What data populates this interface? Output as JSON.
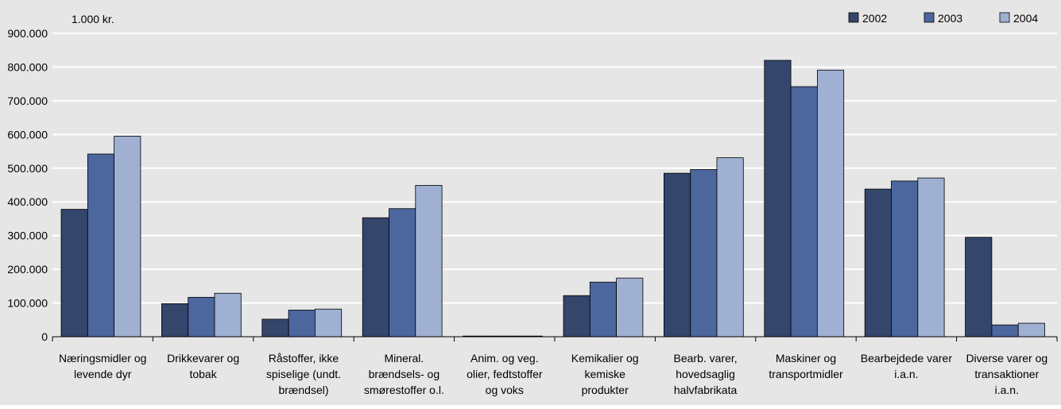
{
  "chart_data": {
    "type": "bar",
    "unit_label": "1.000 kr.",
    "categories": [
      [
        "Næringsmidler og",
        "levende dyr"
      ],
      [
        "Drikkevarer og",
        "tobak"
      ],
      [
        "Råstoffer, ikke",
        "spiselige (undt.",
        "brændsel)"
      ],
      [
        "Mineral.",
        "brændsels- og",
        "smørestoffer o.l."
      ],
      [
        "Anim. og veg.",
        "olier, fedtstoffer",
        "og voks"
      ],
      [
        "Kemikalier og",
        "kemiske",
        "produkter"
      ],
      [
        "Bearb. varer,",
        "hovedsaglig",
        "halvfabrikata"
      ],
      [
        "Maskiner og",
        "transportmidler"
      ],
      [
        "Bearbejdede varer",
        "i.a.n."
      ],
      [
        "Diverse varer og",
        "transaktioner",
        "i.a.n."
      ]
    ],
    "series": [
      {
        "name": "2002",
        "color": "#34466b",
        "values": [
          378000,
          98000,
          52000,
          353000,
          2000,
          122000,
          485000,
          820000,
          438000,
          295000
        ]
      },
      {
        "name": "2003",
        "color": "#4c679e",
        "values": [
          542000,
          117000,
          79000,
          380000,
          2000,
          162000,
          496000,
          742000,
          462000,
          35000
        ]
      },
      {
        "name": "2004",
        "color": "#9fb0d3",
        "values": [
          595000,
          129000,
          82000,
          449000,
          2000,
          174000,
          531000,
          791000,
          471000,
          40000
        ]
      }
    ],
    "y_ticks": [
      "0",
      "100.000",
      "200.000",
      "300.000",
      "400.000",
      "500.000",
      "600.000",
      "700.000",
      "800.000",
      "900.000"
    ],
    "ylim": [
      0,
      900000
    ],
    "grid": true,
    "legend_position": "top-right"
  }
}
